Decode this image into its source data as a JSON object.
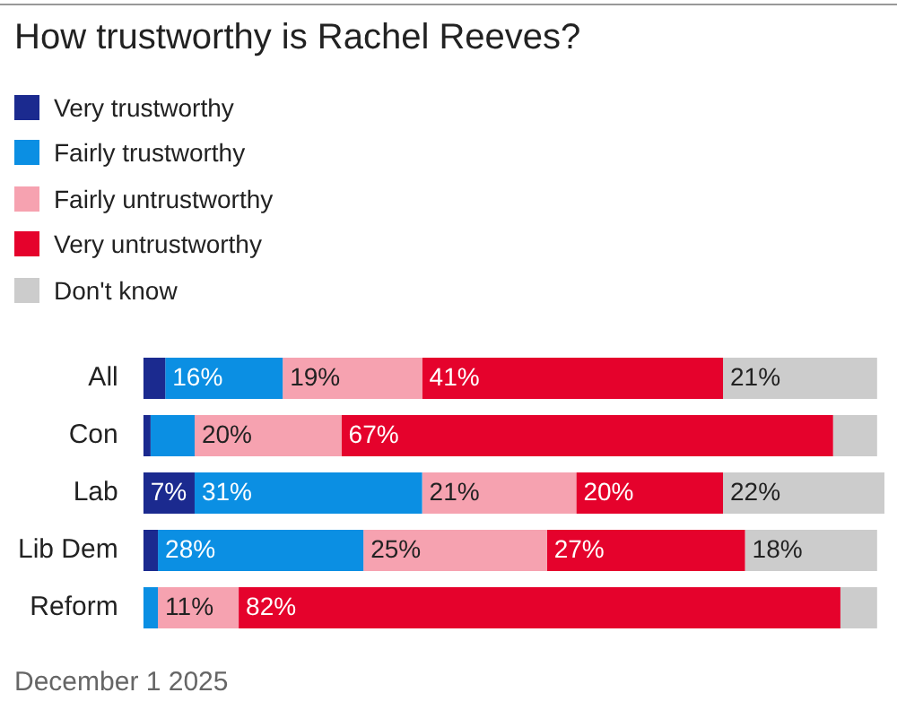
{
  "chart_data": {
    "type": "bar",
    "orientation": "horizontal",
    "stacked": true,
    "title": "How trustworthy is Rachel Reeves?",
    "categories": [
      "All",
      "Con",
      "Lab",
      "Lib Dem",
      "Reform"
    ],
    "series": [
      {
        "name": "Very trustworthy",
        "color": "#1b2a8f",
        "values": [
          3,
          1,
          7,
          2,
          0
        ],
        "value_labels": [
          null,
          null,
          "7%",
          null,
          null
        ]
      },
      {
        "name": "Fairly trustworthy",
        "color": "#0b8fe3",
        "values": [
          16,
          6,
          31,
          28,
          2
        ],
        "value_labels": [
          "16%",
          null,
          "31%",
          "28%",
          null
        ]
      },
      {
        "name": "Fairly untrustworthy",
        "color": "#f6a2b0",
        "values": [
          19,
          20,
          21,
          25,
          11
        ],
        "value_labels": [
          "19%",
          "20%",
          "21%",
          "25%",
          "11%"
        ]
      },
      {
        "name": "Very untrustworthy",
        "color": "#e5022c",
        "values": [
          41,
          67,
          20,
          27,
          82
        ],
        "value_labels": [
          "41%",
          "67%",
          "20%",
          "27%",
          "82%"
        ]
      },
      {
        "name": "Don't know",
        "color": "#cccccc",
        "values": [
          21,
          6,
          22,
          18,
          5
        ],
        "value_labels": [
          "21%",
          null,
          "22%",
          "18%",
          null
        ]
      }
    ],
    "xlim": [
      0,
      101
    ],
    "tick_labels": "y",
    "grid": false,
    "legend": "top left",
    "annotations": [
      "December 1 2025"
    ]
  }
}
